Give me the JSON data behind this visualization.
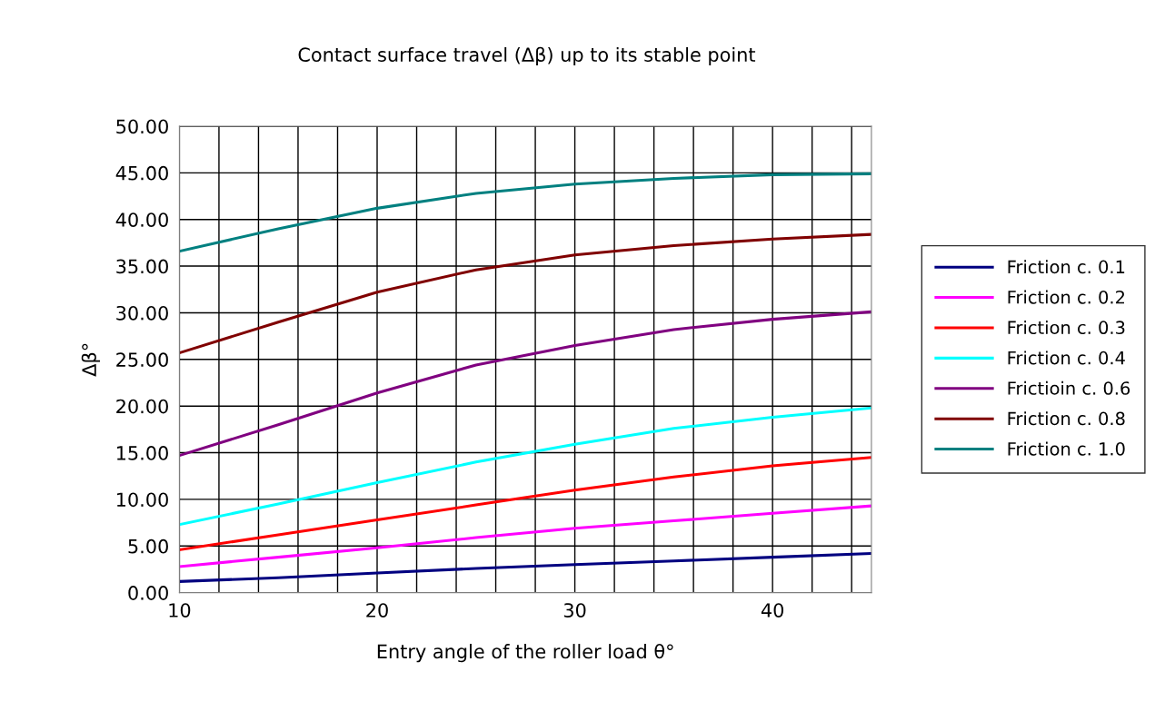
{
  "chart_data": {
    "type": "line",
    "title": "Contact surface travel (Δβ) up to its stable point",
    "xlabel": "Entry angle of the roller load θ°",
    "ylabel": "Δβ°",
    "x": [
      10,
      15,
      20,
      25,
      30,
      35,
      40,
      45
    ],
    "series": [
      {
        "name": "Friction c. 0.1",
        "color": "#000080",
        "values": [
          1.2,
          1.6,
          2.1,
          2.6,
          3.0,
          3.4,
          3.8,
          4.2
        ]
      },
      {
        "name": "Friction c. 0.2",
        "color": "#ff00ff",
        "values": [
          2.8,
          3.8,
          4.8,
          5.9,
          6.9,
          7.7,
          8.5,
          9.3
        ]
      },
      {
        "name": "Friction c. 0.3",
        "color": "#ff0000",
        "values": [
          4.6,
          6.2,
          7.8,
          9.4,
          11.0,
          12.4,
          13.6,
          14.5
        ]
      },
      {
        "name": "Friction c. 0.4",
        "color": "#00ffff",
        "values": [
          7.3,
          9.5,
          11.8,
          14.0,
          15.9,
          17.6,
          18.8,
          19.8
        ]
      },
      {
        "name": "Frictioin c. 0.6",
        "color": "#800080",
        "values": [
          14.7,
          18.0,
          21.4,
          24.4,
          26.5,
          28.2,
          29.3,
          30.1
        ]
      },
      {
        "name": "Friction c. 0.8",
        "color": "#800000",
        "values": [
          25.7,
          29.0,
          32.2,
          34.6,
          36.2,
          37.2,
          37.9,
          38.4
        ]
      },
      {
        "name": "Friction c. 1.0",
        "color": "#008080",
        "values": [
          36.6,
          39.0,
          41.2,
          42.8,
          43.8,
          44.4,
          44.8,
          44.9
        ]
      }
    ],
    "xlim": [
      10,
      45
    ],
    "xticks": [
      10,
      {
        "value": 12,
        "label": null
      },
      {
        "value": 14,
        "label": null
      },
      {
        "value": 16,
        "label": null
      },
      {
        "value": 18,
        "label": null
      },
      20,
      {
        "value": 22,
        "label": null
      },
      {
        "value": 24,
        "label": null
      },
      {
        "value": 26,
        "label": null
      },
      {
        "value": 28,
        "label": null
      },
      30,
      {
        "value": 32,
        "label": null
      },
      {
        "value": 34,
        "label": null
      },
      {
        "value": 36,
        "label": null
      },
      {
        "value": 38,
        "label": null
      },
      40,
      {
        "value": 42,
        "label": null
      },
      {
        "value": 44,
        "label": null
      }
    ],
    "ylim": [
      0,
      50
    ],
    "yticks": [
      {
        "value": 0,
        "label": "0.00"
      },
      {
        "value": 5,
        "label": "5.00"
      },
      {
        "value": 10,
        "label": "10.00"
      },
      {
        "value": 15,
        "label": "15.00"
      },
      {
        "value": 20,
        "label": "20.00"
      },
      {
        "value": 25,
        "label": "25.00"
      },
      {
        "value": 30,
        "label": "30.00"
      },
      {
        "value": 35,
        "label": "35.00"
      },
      {
        "value": 40,
        "label": "40.00"
      },
      {
        "value": 45,
        "label": "45.00"
      },
      {
        "value": 50,
        "label": "50.00"
      }
    ],
    "grid": true,
    "legend": "right",
    "marker": "none",
    "line_style": "solid"
  }
}
